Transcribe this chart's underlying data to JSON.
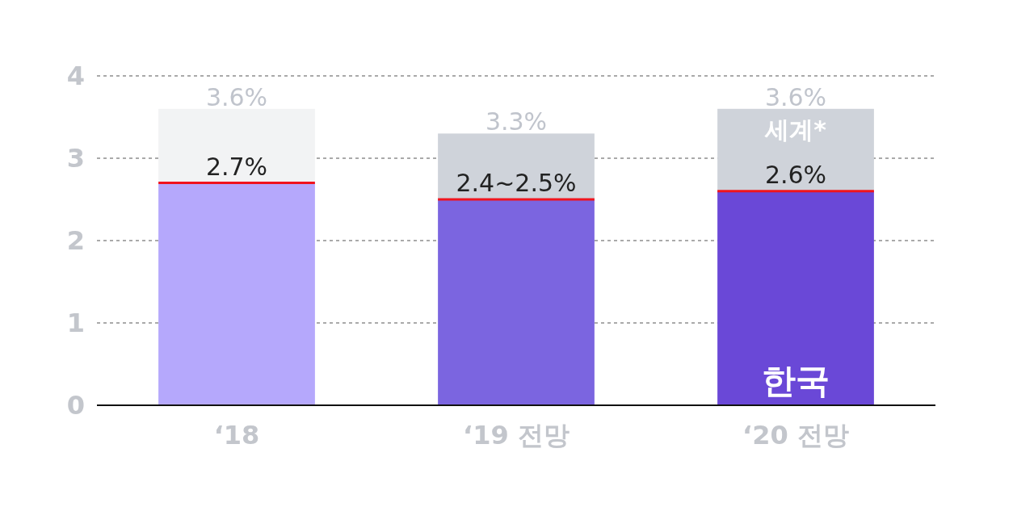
{
  "chart_data": {
    "type": "bar",
    "stacked": true,
    "categories": [
      "‘18",
      "‘19 전망",
      "‘20 전망"
    ],
    "series": [
      {
        "name": "한국",
        "colors": [
          "#b5a8fc",
          "#7b65e0",
          "#6a48d7"
        ],
        "values": [
          2.7,
          2.5,
          2.6
        ],
        "value_labels": [
          "2.7%",
          "2.4~2.5%",
          "2.6%"
        ]
      },
      {
        "name": "세계*",
        "colors": [
          "#f2f3f4",
          "#cfd3da",
          "#cfd3da"
        ],
        "values": [
          0.9,
          0.8,
          1.0
        ]
      }
    ],
    "totals": [
      "3.6%",
      "3.3%",
      "3.6%"
    ],
    "ylim": [
      0,
      4
    ],
    "yticks": [
      0,
      1,
      2,
      3,
      4
    ],
    "grid": "y",
    "line_style": "dashed"
  }
}
